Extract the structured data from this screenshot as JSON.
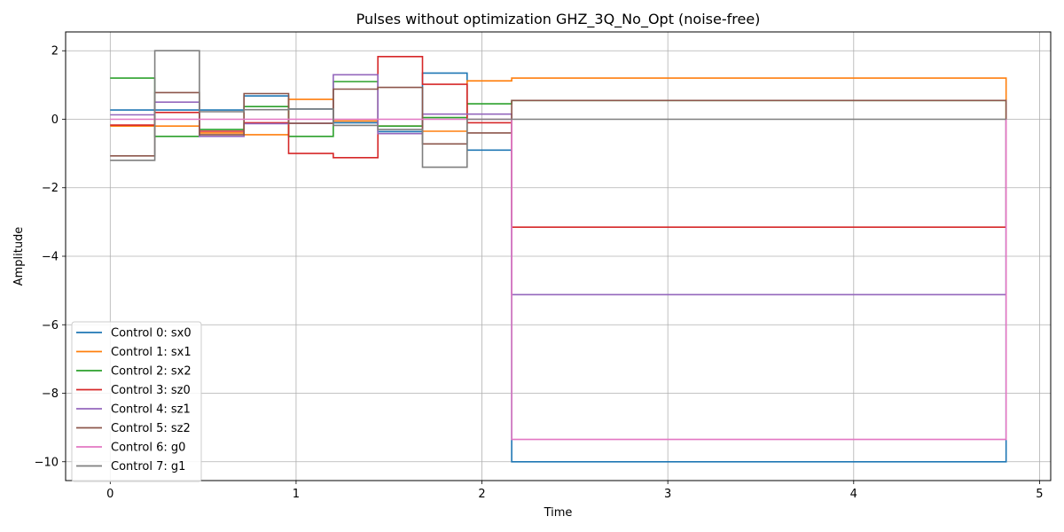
{
  "chart_data": {
    "type": "line",
    "title": "Pulses without optimization GHZ_3Q_No_Opt (noise-free)",
    "xlabel": "Time",
    "ylabel": "Amplitude",
    "xlim": [
      -0.24,
      5.06
    ],
    "ylim": [
      -10.55,
      2.55
    ],
    "xticks": [
      0,
      1,
      2,
      3,
      4,
      5
    ],
    "yticks": [
      -10,
      -8,
      -6,
      -4,
      -2,
      0,
      2
    ],
    "grid": true,
    "legend_position": "lower-left",
    "step_edges": [
      0,
      0.24,
      0.48,
      0.72,
      0.96,
      1.2,
      1.44,
      1.68,
      1.92,
      2.16,
      4.82
    ],
    "series": [
      {
        "name": "Control 0: sx0",
        "color": "#1f77b4",
        "values": [
          0.27,
          0.27,
          0.27,
          0.68,
          0.3,
          -0.1,
          -0.36,
          1.35,
          -0.9,
          -10.0
        ]
      },
      {
        "name": "Control 1: sx1",
        "color": "#ff7f0e",
        "values": [
          -0.2,
          -0.2,
          -0.4,
          -0.45,
          0.58,
          -0.05,
          -0.2,
          -0.35,
          1.12,
          1.2
        ]
      },
      {
        "name": "Control 2: sx2",
        "color": "#2ca02c",
        "values": [
          1.2,
          -0.5,
          -0.3,
          0.37,
          -0.5,
          1.1,
          -0.2,
          0.05,
          0.45,
          0.55
        ]
      },
      {
        "name": "Control 3: sz0",
        "color": "#d62728",
        "values": [
          -0.17,
          0.2,
          -0.35,
          -0.1,
          -1.0,
          -1.12,
          1.83,
          1.02,
          -0.1,
          -3.15
        ]
      },
      {
        "name": "Control 4: sz1",
        "color": "#9467bd",
        "values": [
          0.13,
          0.5,
          -0.5,
          -0.13,
          -0.12,
          1.3,
          -0.42,
          0.15,
          0.15,
          -5.12
        ]
      },
      {
        "name": "Control 5: sz2",
        "color": "#8c564b",
        "values": [
          -1.07,
          0.78,
          -0.45,
          0.75,
          -0.12,
          0.88,
          0.93,
          -0.72,
          -0.4,
          0.55
        ]
      },
      {
        "name": "Control 6: g0",
        "color": "#e377c2",
        "values": [
          0.0,
          0.0,
          0.0,
          0.0,
          0.0,
          0.0,
          0.0,
          0.0,
          0.0,
          -9.35
        ]
      },
      {
        "name": "Control 7: g1",
        "color": "#7f7f7f",
        "values": [
          -1.2,
          2.0,
          0.22,
          0.28,
          0.3,
          -0.18,
          -0.3,
          -1.4,
          0.0,
          0.0
        ]
      }
    ]
  }
}
